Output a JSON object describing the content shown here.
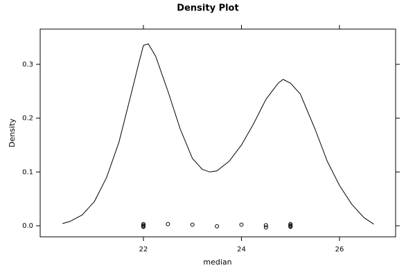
{
  "chart_data": {
    "type": "density",
    "title": "Density Plot",
    "x_label": "median",
    "y_label": "Density",
    "x": [
      20.35,
      20.5,
      20.75,
      21.0,
      21.25,
      21.5,
      21.75,
      21.9,
      22.0,
      22.1,
      22.25,
      22.5,
      22.75,
      23.0,
      23.2,
      23.35,
      23.5,
      23.75,
      24.0,
      24.25,
      24.5,
      24.75,
      24.85,
      25.0,
      25.2,
      25.5,
      25.75,
      26.0,
      26.25,
      26.5,
      26.7
    ],
    "values": [
      0.004,
      0.008,
      0.02,
      0.045,
      0.09,
      0.155,
      0.245,
      0.3,
      0.335,
      0.338,
      0.315,
      0.25,
      0.18,
      0.125,
      0.105,
      0.1,
      0.102,
      0.12,
      0.15,
      0.19,
      0.235,
      0.265,
      0.272,
      0.265,
      0.245,
      0.18,
      0.12,
      0.075,
      0.04,
      0.015,
      0.003
    ],
    "color": "#000000",
    "points": {
      "x": [
        22,
        22,
        22,
        22,
        22.5,
        23,
        23.5,
        24,
        24.5,
        24.5,
        25,
        25,
        25,
        25
      ],
      "y": [
        0.003,
        0.001,
        -0.001,
        -0.002,
        0.003,
        0.002,
        -0.001,
        0.002,
        0.001,
        -0.003,
        0.003,
        0.001,
        -0.001,
        -0.002
      ]
    },
    "xlim": [
      19.894,
      27.145
    ],
    "ylim": [
      -0.0206,
      0.3655
    ],
    "xticks": [
      22,
      24,
      26
    ],
    "yticks": [
      {
        "value": 0,
        "label": "0.0"
      },
      0.1,
      0.2,
      0.3
    ]
  }
}
